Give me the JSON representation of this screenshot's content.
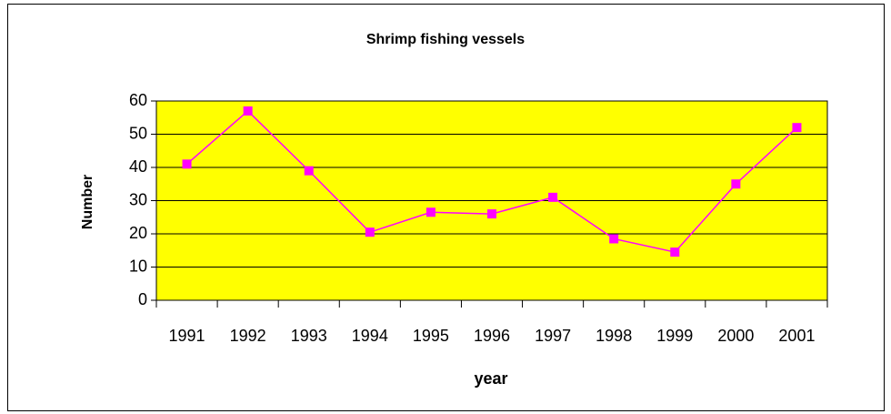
{
  "chart_data": {
    "type": "line",
    "title": "Shrimp fishing vessels",
    "x_label": "year",
    "y_label": "Number",
    "categories": [
      "1991",
      "1992",
      "1993",
      "1994",
      "1995",
      "1996",
      "1997",
      "1998",
      "1999",
      "2000",
      "2001"
    ],
    "series": [
      {
        "name": "Number",
        "color": "#ff00ff",
        "values": [
          41,
          57,
          39,
          20.5,
          26.5,
          26,
          31,
          18.5,
          14.5,
          35,
          52
        ]
      }
    ],
    "ylim": [
      0,
      60
    ],
    "yticks": [
      0,
      10,
      20,
      30,
      40,
      50,
      60
    ],
    "grid": true,
    "plot_background": "#ffff00"
  }
}
